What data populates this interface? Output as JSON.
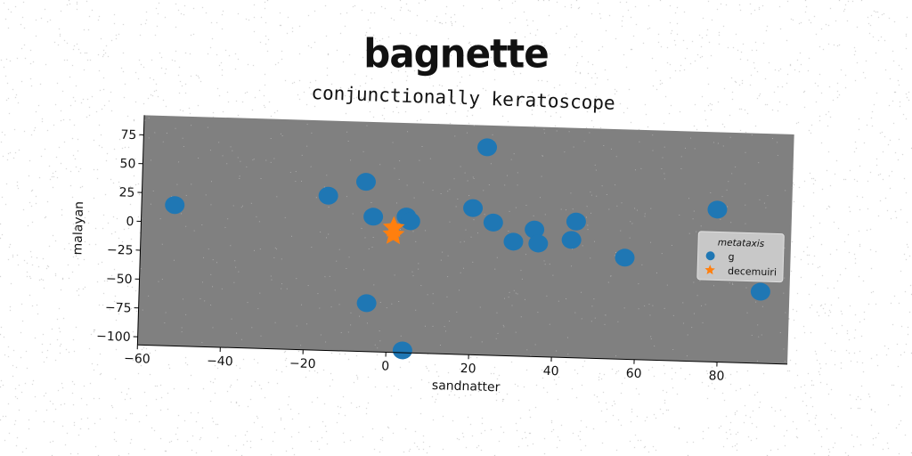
{
  "chart_data": {
    "type": "scatter",
    "title": "bagnette",
    "subtitle": "conjunctionally keratoscope",
    "xlabel": "sandnatter",
    "ylabel": "malayan",
    "xlim": [
      -60,
      97
    ],
    "ylim": [
      -107,
      92
    ],
    "xticks": [
      "−60",
      "−40",
      "−20",
      "0",
      "20",
      "40",
      "60",
      "80"
    ],
    "xtick_values": [
      -60,
      -40,
      -20,
      0,
      20,
      40,
      60,
      80
    ],
    "yticks": [
      "75",
      "50",
      "25",
      "0",
      "−25",
      "−50",
      "−75",
      "−100"
    ],
    "ytick_values": [
      75,
      50,
      25,
      0,
      -25,
      -50,
      -75,
      -100
    ],
    "plot_background": "#808080",
    "grid": false,
    "legend": {
      "title": "metataxis",
      "placement": "right",
      "entries": [
        "g",
        "decemuiri"
      ]
    },
    "series": [
      {
        "name": "g",
        "marker": "circle",
        "color": "#1f77b4",
        "points": [
          [
            -52,
            15
          ],
          [
            -15,
            27
          ],
          [
            -6,
            40
          ],
          [
            -4,
            10
          ],
          [
            4,
            11
          ],
          [
            5,
            7
          ],
          [
            20,
            20
          ],
          [
            23,
            73
          ],
          [
            25,
            8
          ],
          [
            30,
            -8
          ],
          [
            35,
            3
          ],
          [
            36,
            -9
          ],
          [
            44,
            -5
          ],
          [
            45,
            11
          ],
          [
            57,
            -19
          ],
          [
            79,
            25
          ],
          [
            -5,
            -65
          ],
          [
            4,
            -105
          ],
          [
            90,
            -45
          ]
        ]
      },
      {
        "name": "decemuiri",
        "marker": "star",
        "color": "#ff7f0e",
        "points": [
          [
            1,
            1
          ],
          [
            1,
            -5
          ]
        ]
      }
    ]
  }
}
